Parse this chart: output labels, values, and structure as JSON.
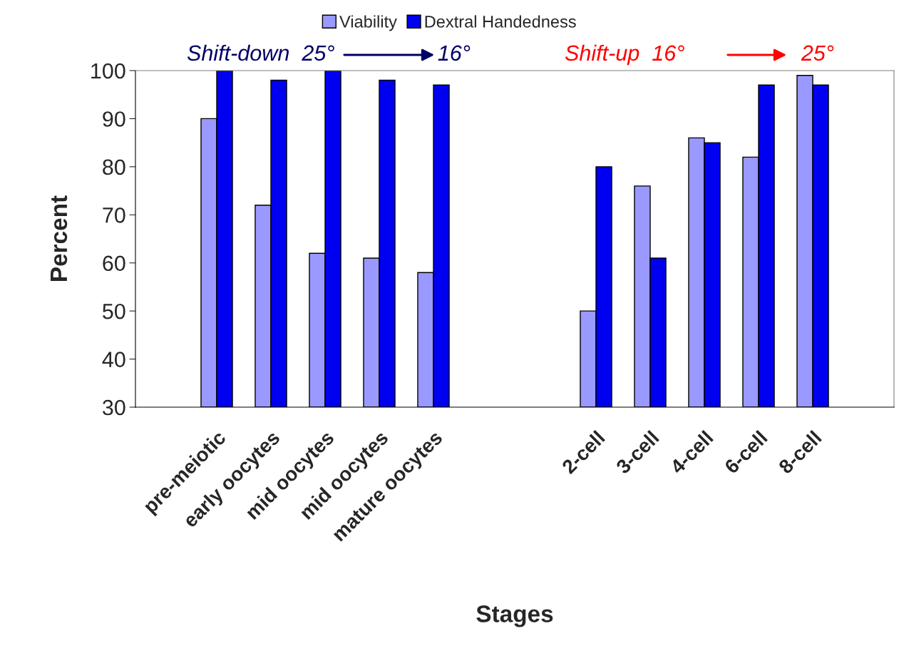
{
  "chart_data": {
    "type": "bar",
    "xlabel": "Stages",
    "ylabel": "Percent",
    "categories": [
      null,
      "pre-meiotic",
      "early oocytes",
      "mid oocytes",
      "mid oocytes",
      "mature oocytes",
      null,
      null,
      "2-cell",
      "3-cell",
      "4-cell",
      "6-cell",
      "8-cell",
      null
    ],
    "series": [
      {
        "name": "Viability",
        "color": "#9999ff",
        "values": [
          null,
          90,
          72,
          62,
          61,
          58,
          null,
          null,
          50,
          76,
          86,
          82,
          99,
          null
        ]
      },
      {
        "name": "Dextral Handedness",
        "color": "#0000f0",
        "values": [
          null,
          100,
          98,
          100,
          98,
          97,
          null,
          null,
          80,
          61,
          85,
          97,
          97,
          null
        ]
      }
    ],
    "ylim": [
      30,
      100
    ],
    "yticks": [
      30,
      40,
      50,
      60,
      70,
      80,
      90,
      100
    ],
    "grid": false,
    "legend": "top",
    "annotations": [
      "Shift-down  25°",
      "16°",
      "Shift-up  16°",
      "25°"
    ]
  }
}
